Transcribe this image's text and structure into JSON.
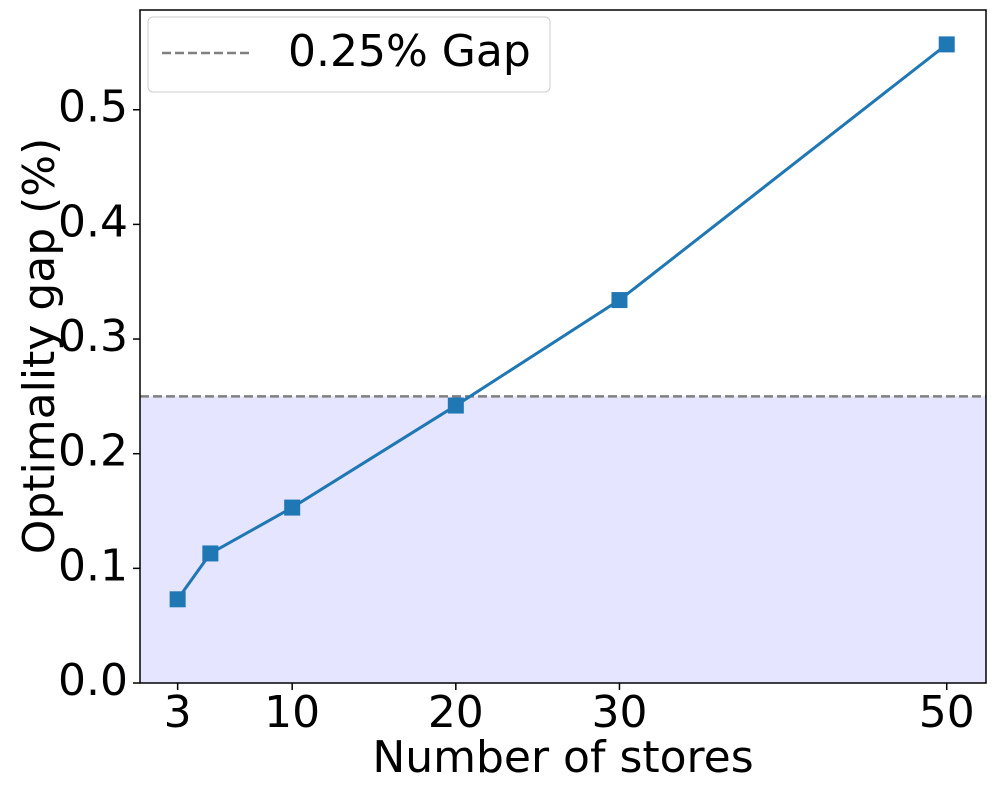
{
  "chart_data": {
    "type": "line",
    "x_label": "Number of stores",
    "y_label": "Optimality gap (%)",
    "x": [
      3,
      5,
      10,
      20,
      30,
      50
    ],
    "series": [
      {
        "name": null,
        "color": "#1f77b4",
        "values": [
          0.073,
          0.113,
          0.153,
          0.242,
          0.334,
          0.557
        ]
      }
    ],
    "reference_line": {
      "name": "0.25% Gap",
      "value": 0.25,
      "color": "#808080",
      "fill_below": "#e5e5ff"
    },
    "xlim": [
      0.7,
      52.4
    ],
    "ylim": [
      0,
      0.587
    ],
    "xticks": [
      3,
      10,
      20,
      30,
      50
    ],
    "yticks": [
      {
        "value": 0,
        "label": "0.0"
      },
      0.1,
      0.2,
      0.3,
      0.4,
      0.5
    ],
    "legend": "upper left",
    "grid": false
  }
}
